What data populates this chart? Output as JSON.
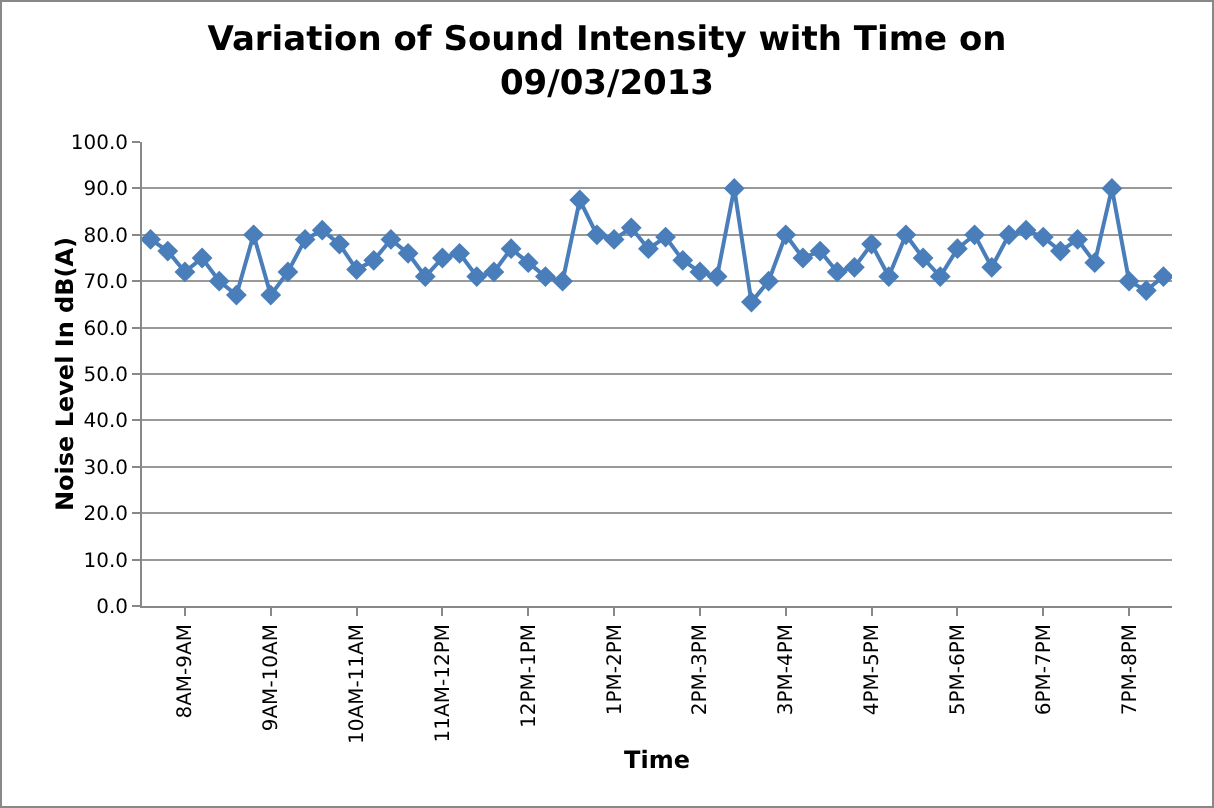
{
  "chart_data": {
    "type": "line",
    "title": "Variation of Sound Intensity with Time on 09/03/2013",
    "xlabel": "Time",
    "ylabel": "Noise Level In dB(A)",
    "categories": [
      null,
      null,
      "8AM-9AM",
      null,
      null,
      null,
      null,
      "9AM-10AM",
      null,
      null,
      null,
      null,
      "10AM-11AM",
      null,
      null,
      null,
      null,
      "11AM-12PM",
      null,
      null,
      null,
      null,
      "12PM-1PM",
      null,
      null,
      null,
      null,
      "1PM-2PM",
      null,
      null,
      null,
      null,
      "2PM-3PM",
      null,
      null,
      null,
      null,
      "3PM-4PM",
      null,
      null,
      null,
      null,
      "4PM-5PM",
      null,
      null,
      null,
      null,
      "5PM-6PM",
      null,
      null,
      null,
      null,
      "6PM-7PM",
      null,
      null,
      null,
      null,
      "7PM-8PM",
      null,
      null
    ],
    "series": [
      {
        "color": "#4a7ebb",
        "values": [
          79,
          76.5,
          72,
          75,
          70,
          67,
          80,
          67,
          72,
          79,
          81,
          78,
          72.5,
          74.5,
          79,
          76,
          71,
          75,
          76,
          71,
          72,
          77,
          74,
          71,
          70,
          87.5,
          80,
          79,
          81.5,
          77,
          79.5,
          74.5,
          72,
          71,
          90,
          65.5,
          70,
          80,
          75,
          76.5,
          72,
          73,
          78,
          71,
          80,
          75,
          71,
          77,
          80,
          73,
          80,
          81,
          79.5,
          76.5,
          79,
          74,
          90,
          70,
          68,
          71
        ]
      }
    ],
    "ylim": [
      0,
      100
    ],
    "yticks": [
      {
        "value": 0,
        "label": "0.0"
      },
      {
        "value": 10,
        "label": "10.0"
      },
      {
        "value": 20,
        "label": "20.0"
      },
      {
        "value": 30,
        "label": "30.0"
      },
      {
        "value": 40,
        "label": "40.0"
      },
      {
        "value": 50,
        "label": "50.0"
      },
      {
        "value": 60,
        "label": "60.0"
      },
      {
        "value": 70,
        "label": "70.0"
      },
      {
        "value": 80,
        "label": "80.0"
      },
      {
        "value": 90,
        "label": "90.0"
      },
      {
        "value": 100,
        "label": "100.0"
      }
    ],
    "grid": "y",
    "marker": "diamond",
    "line_style": "solid"
  }
}
